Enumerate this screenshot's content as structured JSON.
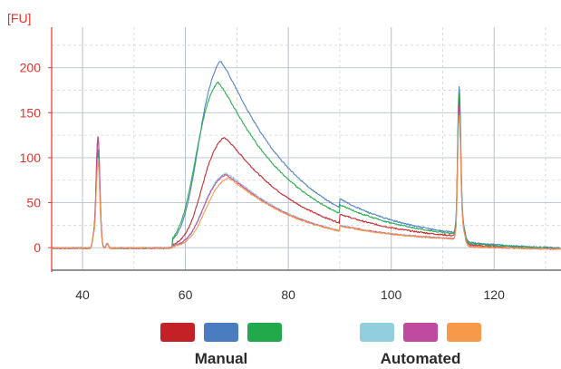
{
  "chart_data": {
    "type": "line",
    "ylabel": "[FU]",
    "xlabel": "",
    "xlim": [
      34,
      133
    ],
    "ylim": [
      -25,
      245
    ],
    "xticks": [
      40,
      60,
      80,
      100,
      120
    ],
    "yticks": [
      0,
      50,
      100,
      150,
      200
    ],
    "grid": true,
    "colors": {
      "axis_text": "#e8332a",
      "grid_major": "#b8bfcc",
      "grid_minor": "#cfd3da"
    },
    "series": [
      {
        "color": "#c42127",
        "peak_height": 130,
        "peak_x": 67.5,
        "marker1_height": 123,
        "marker2_height": 150
      },
      {
        "color": "#4a7dc0",
        "peak_height": 220,
        "peak_x": 66.8,
        "marker1_height": 110,
        "marker2_height": 162
      },
      {
        "color": "#22a94b",
        "peak_height": 195,
        "peak_x": 66.3,
        "marker1_height": 105,
        "marker2_height": 155
      },
      {
        "color": "#92cfde",
        "peak_height": 88,
        "peak_x": 67.8,
        "marker1_height": 100,
        "marker2_height": 140
      },
      {
        "color": "#c04aa0",
        "peak_height": 86,
        "peak_x": 67.8,
        "marker1_height": 122,
        "marker2_height": 145
      },
      {
        "color": "#f6994a",
        "peak_height": 82,
        "peak_x": 68.2,
        "marker1_height": 95,
        "marker2_height": 135
      }
    ],
    "legend": {
      "groups": [
        {
          "label": "Manual",
          "colors": [
            "#c42127",
            "#4a7dc0",
            "#22a94b"
          ]
        },
        {
          "label": "Automated",
          "colors": [
            "#92cfde",
            "#c04aa0",
            "#f6994a"
          ]
        }
      ]
    }
  }
}
